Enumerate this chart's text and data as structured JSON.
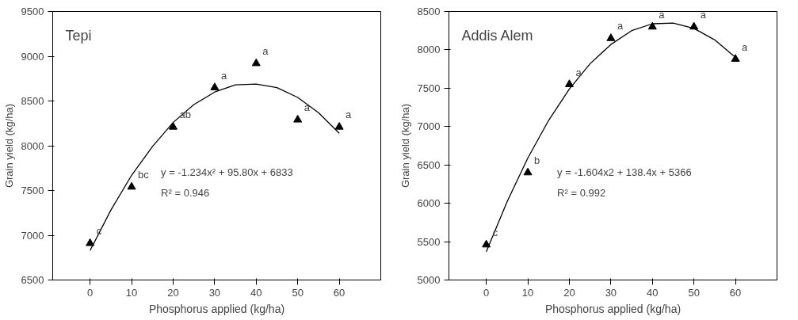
{
  "chart_data": [
    {
      "type": "scatter",
      "title": "Tepi",
      "xlabel": "Phosphorus applied (kg/ha)",
      "ylabel": "Grain yield (kg/ha)",
      "x": [
        0,
        10,
        20,
        30,
        40,
        50,
        60
      ],
      "series": [
        {
          "type": "scatter",
          "color": "#000000",
          "marker": "triangle",
          "values": [
            6910,
            7540,
            8210,
            8650,
            8920,
            8290,
            8210
          ]
        },
        {
          "type": "line",
          "color": "#000000",
          "line_style": "solid",
          "x": [
            0,
            5,
            10,
            15,
            20,
            25,
            30,
            35,
            40,
            45,
            50,
            55,
            60
          ],
          "values": [
            6830,
            7280,
            7670,
            7990,
            8260,
            8460,
            8600,
            8680,
            8690,
            8650,
            8540,
            8370,
            8140
          ]
        }
      ],
      "xlim": [
        -9,
        70
      ],
      "ylim": [
        6500,
        9500
      ],
      "xticks": [
        0,
        10,
        20,
        30,
        40,
        50,
        60
      ],
      "yticks": [
        6500,
        7000,
        7500,
        8000,
        8500,
        9000,
        9500
      ],
      "annotations": [
        "c",
        "bc",
        "ab",
        "a",
        "a",
        "a",
        "a",
        "y = -1.234x² + 95.80x + 6833",
        "R² = 0.946"
      ]
    },
    {
      "type": "scatter",
      "title": "Addis Alem",
      "xlabel": "Phosphorus applied (kg/ha)",
      "ylabel": "Grain yield (kg/ha)",
      "x": [
        0,
        10,
        20,
        30,
        40,
        50,
        60
      ],
      "series": [
        {
          "type": "scatter",
          "color": "#000000",
          "marker": "triangle",
          "values": [
            5460,
            6400,
            7550,
            8150,
            8300,
            8300,
            7880
          ]
        },
        {
          "type": "line",
          "color": "#000000",
          "line_style": "solid",
          "x": [
            0,
            5,
            10,
            15,
            20,
            25,
            30,
            35,
            40,
            45,
            50,
            55,
            60
          ],
          "values": [
            5370,
            6020,
            6590,
            7080,
            7490,
            7820,
            8070,
            8250,
            8340,
            8350,
            8280,
            8130,
            7900
          ]
        }
      ],
      "xlim": [
        -9,
        70
      ],
      "ylim": [
        5000,
        8500
      ],
      "xticks": [
        0,
        10,
        20,
        30,
        40,
        50,
        60
      ],
      "yticks": [
        5000,
        5500,
        6000,
        6500,
        7000,
        7500,
        8000,
        8500
      ],
      "annotations": [
        "c",
        "b",
        "a",
        "a",
        "a",
        "a",
        "a",
        "y = -1.604x2 + 138.4x + 5366",
        "R² = 0.992"
      ]
    }
  ]
}
